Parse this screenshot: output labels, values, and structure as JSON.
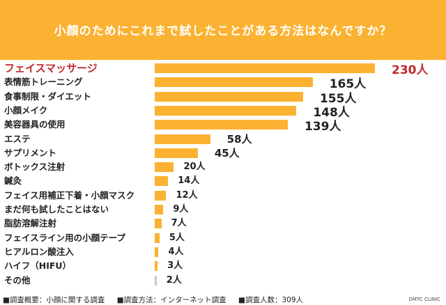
{
  "chart_data": {
    "type": "bar",
    "orientation": "horizontal",
    "title": "小顔のためにこれまで試したことがある方法はなんですか？",
    "categories": [
      "フェイスマッサージ",
      "表情筋トレーニング",
      "食事制限・ダイエット",
      "小顔メイク",
      "美容器具の使用",
      "エステ",
      "サプリメント",
      "ボトックス注射",
      "鍼灸",
      "フェイス用補正下着・小顔マスク",
      "まだ何も試したことはない",
      "脂肪溶解注射",
      "フェイスライン用の小顔テープ",
      "ヒアルロン酸注入",
      "ハイフ（HIFU）",
      "その他"
    ],
    "values": [
      230,
      165,
      155,
      148,
      139,
      58,
      45,
      20,
      14,
      12,
      9,
      7,
      5,
      4,
      3,
      2
    ],
    "value_labels": [
      "230人",
      "165人",
      "155人",
      "148人",
      "139人",
      "58人",
      "45人",
      "20人",
      "14人",
      "12人",
      "9人",
      "7人",
      "5人",
      "4人",
      "3人",
      "2人"
    ],
    "unit": "人",
    "grid": false,
    "colors": {
      "bar": "#FBB232",
      "other_bar": "#C8C8C8",
      "highlight": "#C0282D",
      "header": "#FBB232"
    }
  },
  "footer": {
    "items": [
      "■調査概要：小顔に関する調査",
      "■調査方法：インターネット調査",
      "■調査人数：309人"
    ],
    "brand": "DMTC CLINIC"
  }
}
